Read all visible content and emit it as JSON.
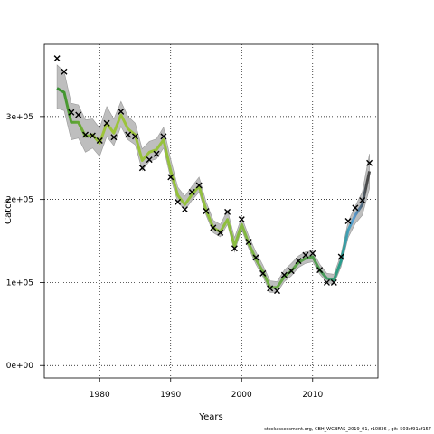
{
  "chart_data": {
    "type": "line",
    "title": "",
    "xlabel": "Years",
    "ylabel": "Catch",
    "xlim": [
      1972.2,
      2019.2
    ],
    "ylim": [
      -15000,
      387000
    ],
    "x_ticks": [
      1980,
      1990,
      2000,
      2010
    ],
    "x_tick_labels": [
      "1980",
      "1990",
      "2000",
      "2010"
    ],
    "y_ticks": [
      0,
      100000,
      200000,
      300000
    ],
    "y_tick_labels": [
      "0e+00",
      "1e+05",
      "2e+05",
      "3e+05"
    ],
    "grid": "dotted",
    "observed": {
      "marker": "x",
      "x": [
        1974,
        1975,
        1976,
        1977,
        1978,
        1979,
        1980,
        1981,
        1982,
        1983,
        1984,
        1985,
        1986,
        1987,
        1988,
        1989,
        1990,
        1991,
        1992,
        1993,
        1994,
        1995,
        1996,
        1997,
        1998,
        1999,
        2000,
        2001,
        2002,
        2003,
        2004,
        2005,
        2006,
        2007,
        2008,
        2009,
        2010,
        2011,
        2012,
        2013,
        2014,
        2015,
        2016,
        2017,
        2018
      ],
      "values": [
        370000,
        354000,
        305000,
        302000,
        278000,
        277000,
        271000,
        292000,
        275000,
        306000,
        278000,
        276000,
        238000,
        248000,
        255000,
        276000,
        227000,
        197000,
        188000,
        209000,
        217000,
        186000,
        166000,
        160000,
        185000,
        141000,
        176000,
        149000,
        130000,
        111000,
        93000,
        90000,
        109000,
        114000,
        126000,
        133000,
        135000,
        115000,
        100000,
        100000,
        131000,
        174000,
        190000,
        199000,
        244000
      ]
    },
    "series": [
      {
        "x": [
          1974,
          1975,
          1976,
          1977,
          1978,
          1979,
          1980,
          1981,
          1982,
          1983,
          1984,
          1985,
          1986,
          1987,
          1988,
          1989,
          1990,
          1991,
          1992,
          1993,
          1994,
          1995,
          1996,
          1997,
          1998,
          1999,
          2000,
          2001,
          2002,
          2003,
          2004,
          2005,
          2006,
          2007,
          2008,
          2009,
          2010,
          2011,
          2012,
          2013,
          2014,
          2015,
          2016,
          2017,
          2018
        ],
        "values": [
          334000,
          329000,
          293000,
          293000,
          276000,
          278000,
          268000,
          292000,
          280000,
          302000,
          285000,
          278000,
          247000,
          257000,
          260000,
          272000,
          235000,
          205000,
          194000,
          206000,
          216000,
          187000,
          166000,
          161000,
          176000,
          144000,
          170000,
          147000,
          128000,
          113000,
          94000,
          94000,
          107000,
          114000,
          124000,
          129000,
          131000,
          115000,
          105000,
          103000,
          126000,
          163000,
          181000,
          194000,
          234000
        ],
        "ci_lower": [
          310000,
          307000,
          272000,
          274000,
          257000,
          262000,
          252000,
          276000,
          265000,
          288000,
          272000,
          266000,
          235000,
          246000,
          249000,
          262000,
          226000,
          197000,
          187000,
          199000,
          209000,
          181000,
          160000,
          155000,
          170000,
          137000,
          164000,
          141000,
          122000,
          107000,
          88000,
          88000,
          101000,
          108000,
          118000,
          123000,
          125000,
          110000,
          100000,
          98000,
          119000,
          154000,
          171000,
          181000,
          213000
        ],
        "ci_upper": [
          362000,
          354000,
          316000,
          314000,
          296000,
          297000,
          286000,
          312000,
          297000,
          318000,
          300000,
          292000,
          261000,
          270000,
          273000,
          287000,
          249000,
          215000,
          204000,
          216000,
          227000,
          197000,
          175000,
          170000,
          187000,
          154000,
          179000,
          156000,
          137000,
          121000,
          102000,
          101000,
          115000,
          123000,
          132000,
          137000,
          138000,
          122000,
          111000,
          110000,
          134000,
          173000,
          192000,
          209000,
          255000
        ]
      }
    ],
    "colors": {
      "ci_band": "#bebebe",
      "ci_border": "#9a9a9a",
      "estimate_gradient": [
        "#2e8b2e",
        "#9ec43a",
        "#2a9d8f",
        "#5aa0d8",
        "#4a4a4a"
      ],
      "observed_marker": "#000000",
      "grid": "#000000"
    }
  },
  "footer": {
    "text": "stockassessment.org, CBH_WGBFAS_2019_01, r10836 , git: 503cf91af157"
  }
}
